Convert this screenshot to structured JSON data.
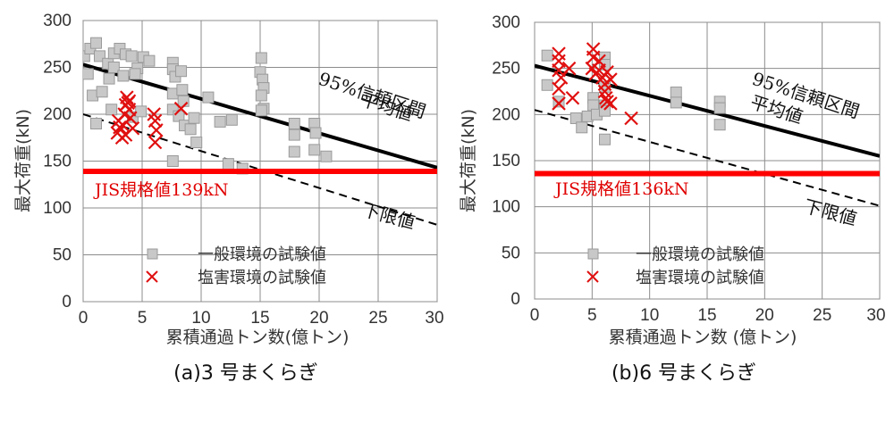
{
  "chart_data": [
    {
      "type": "scatter",
      "caption": "(a)3 号まくらぎ",
      "xlabel": "累積通過トン数(億トン)",
      "ylabel": "最大荷重(kN)",
      "xlim": [
        0,
        30
      ],
      "ylim": [
        0,
        300
      ],
      "xticks": [
        "0",
        "5",
        "10",
        "15",
        "20",
        "25",
        "30"
      ],
      "yticks": [
        "0",
        "50",
        "100",
        "150",
        "200",
        "250",
        "300"
      ],
      "grid": true,
      "legend_position": "bottom-center",
      "colors": {
        "general": "#c8c8c8",
        "general_edge": "#9a9a9a",
        "salt": "#e01010",
        "jis": "#ff0000",
        "line": "#000000"
      },
      "lines": {
        "mean": {
          "label": "平均値",
          "x": [
            0,
            30
          ],
          "y": [
            253,
            143
          ]
        },
        "ci95": {
          "label": "95%信頼区間"
        },
        "lower": {
          "label": "下限値",
          "x": [
            0,
            30
          ],
          "y": [
            200,
            82
          ]
        },
        "jis": {
          "label": "JIS規格値139kN",
          "y": 139
        }
      },
      "series": [
        {
          "name": "一般環境の試験値",
          "marker": "square",
          "points": [
            [
              0.1,
              262
            ],
            [
              0.6,
              270
            ],
            [
              1.1,
              276
            ],
            [
              1.4,
              262
            ],
            [
              2.1,
              254
            ],
            [
              2.6,
              265
            ],
            [
              2.6,
              250
            ],
            [
              3.1,
              270
            ],
            [
              3.6,
              264
            ],
            [
              4.1,
              262
            ],
            [
              4.6,
              249
            ],
            [
              5.1,
              261
            ],
            [
              5.6,
              257
            ],
            [
              0.4,
              243
            ],
            [
              0.8,
              220
            ],
            [
              1.6,
              224
            ],
            [
              2.2,
              238
            ],
            [
              3.4,
              241
            ],
            [
              4.4,
              243
            ],
            [
              1.1,
              190
            ],
            [
              2.4,
              205
            ],
            [
              4.2,
              197
            ],
            [
              4.9,
              203
            ],
            [
              7.6,
              255
            ],
            [
              7.6,
              248
            ],
            [
              7.8,
              240
            ],
            [
              8.3,
              246
            ],
            [
              7.6,
              222
            ],
            [
              8.4,
              226
            ],
            [
              8.5,
              214
            ],
            [
              7.6,
              205
            ],
            [
              8.1,
              198
            ],
            [
              8.6,
              188
            ],
            [
              9.1,
              184
            ],
            [
              9.4,
              196
            ],
            [
              9.6,
              170
            ],
            [
              10.6,
              218
            ],
            [
              7.6,
              150
            ],
            [
              11.6,
              192
            ],
            [
              12.6,
              194
            ],
            [
              12.3,
              147
            ],
            [
              13.5,
              142
            ],
            [
              15.1,
              260
            ],
            [
              15.0,
              245
            ],
            [
              15.2,
              237
            ],
            [
              15.3,
              228
            ],
            [
              15.1,
              220
            ],
            [
              15.3,
              206
            ],
            [
              15.1,
              204
            ],
            [
              17.9,
              190
            ],
            [
              17.9,
              178
            ],
            [
              17.9,
              160
            ],
            [
              19.6,
              190
            ],
            [
              19.7,
              180
            ],
            [
              19.6,
              162
            ],
            [
              20.6,
              155
            ]
          ]
        },
        {
          "name": "塩害環境の試験値",
          "marker": "x",
          "points": [
            [
              2.9,
              180
            ],
            [
              3.1,
              186
            ],
            [
              3.0,
              193
            ],
            [
              3.3,
              175
            ],
            [
              3.5,
              200
            ],
            [
              3.6,
              210
            ],
            [
              3.7,
              218
            ],
            [
              3.8,
              212
            ],
            [
              3.9,
              205
            ],
            [
              4.0,
              196
            ],
            [
              4.2,
              185
            ],
            [
              3.4,
              188
            ],
            [
              3.6,
              178
            ],
            [
              3.9,
              214
            ],
            [
              6.0,
              200
            ],
            [
              6.1,
              193
            ],
            [
              6.2,
              183
            ],
            [
              6.1,
              170
            ],
            [
              8.3,
              206
            ]
          ]
        }
      ]
    },
    {
      "type": "scatter",
      "caption": "(b)6 号まくらぎ",
      "xlabel": "累積通過トン数 (億トン)",
      "ylabel": "最大荷重(kN)",
      "xlim": [
        0,
        30
      ],
      "ylim": [
        0,
        300
      ],
      "xticks": [
        "0",
        "5",
        "10",
        "15",
        "20",
        "25",
        "30"
      ],
      "yticks": [
        "0",
        "50",
        "100",
        "150",
        "200",
        "250",
        "300"
      ],
      "grid": true,
      "legend_position": "bottom-center",
      "colors": {
        "general": "#c8c8c8",
        "general_edge": "#9a9a9a",
        "salt": "#e01010",
        "jis": "#ff0000",
        "line": "#000000"
      },
      "lines": {
        "mean": {
          "label": "平均値",
          "x": [
            0,
            30
          ],
          "y": [
            253,
            155
          ]
        },
        "ci95": {
          "label": "95%信頼区間"
        },
        "lower": {
          "label": "下限値",
          "x": [
            0,
            30
          ],
          "y": [
            205,
            101
          ]
        },
        "jis": {
          "label": "JIS規格値136kN",
          "y": 136
        }
      },
      "series": [
        {
          "name": "一般環境の試験値",
          "marker": "square",
          "points": [
            [
              1.1,
              264
            ],
            [
              1.1,
              232
            ],
            [
              2.1,
              214
            ],
            [
              3.6,
              196
            ],
            [
              4.1,
              186
            ],
            [
              4.6,
              198
            ],
            [
              5.1,
              218
            ],
            [
              5.1,
              210
            ],
            [
              5.4,
              200
            ],
            [
              6.1,
              262
            ],
            [
              6.1,
              254
            ],
            [
              6.1,
              230
            ],
            [
              6.1,
              210
            ],
            [
              6.1,
              204
            ],
            [
              6.1,
              173
            ],
            [
              12.3,
              224
            ],
            [
              12.3,
              213
            ],
            [
              16.1,
              214
            ],
            [
              16.1,
              207
            ],
            [
              16.1,
              189
            ]
          ]
        },
        {
          "name": "塩害環境の試験値",
          "marker": "x",
          "points": [
            [
              2.1,
              266
            ],
            [
              2.1,
              258
            ],
            [
              2.1,
              248
            ],
            [
              2.3,
              240
            ],
            [
              2.1,
              228
            ],
            [
              2.1,
              212
            ],
            [
              3.0,
              250
            ],
            [
              3.3,
              218
            ],
            [
              5.1,
              271
            ],
            [
              5.1,
              262
            ],
            [
              5.0,
              250
            ],
            [
              5.3,
              244
            ],
            [
              5.6,
              258
            ],
            [
              5.6,
              248
            ],
            [
              5.9,
              240
            ],
            [
              6.1,
              233
            ],
            [
              6.1,
              225
            ],
            [
              6.2,
              218
            ],
            [
              6.3,
              246
            ],
            [
              6.6,
              238
            ],
            [
              6.3,
              214
            ],
            [
              6.6,
              212
            ],
            [
              8.4,
              196
            ]
          ]
        }
      ]
    }
  ]
}
